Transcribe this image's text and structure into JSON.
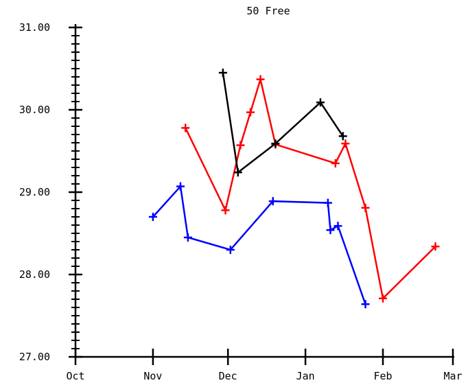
{
  "chart_data": {
    "type": "line",
    "title": "50 Free",
    "xlabel": "",
    "ylabel": "",
    "x_tick_labels": [
      "Oct",
      "Nov",
      "Dec",
      "Jan",
      "Feb",
      "Mar"
    ],
    "y_tick_labels": [
      "27.00",
      "28.00",
      "29.00",
      "30.00",
      "31.00"
    ],
    "xlim": [
      "Oct 1",
      "Mar 1"
    ],
    "ylim": [
      27.0,
      31.0
    ],
    "grid": false,
    "legend": "none",
    "marker": "plus",
    "series": [
      {
        "color": "#ff0000",
        "points": [
          {
            "x": "Nov 14",
            "y": 29.78
          },
          {
            "x": "Nov 30",
            "y": 28.78
          },
          {
            "x": "Dec 6",
            "y": 29.57
          },
          {
            "x": "Dec 10",
            "y": 29.97
          },
          {
            "x": "Dec 14",
            "y": 30.37
          },
          {
            "x": "Dec 20",
            "y": 29.58
          },
          {
            "x": "Jan 13",
            "y": 29.35
          },
          {
            "x": "Jan 17",
            "y": 29.59
          },
          {
            "x": "Jan 25",
            "y": 28.81
          },
          {
            "x": "Feb 1",
            "y": 27.71
          },
          {
            "x": "Feb 22",
            "y": 28.34
          }
        ]
      },
      {
        "color": "#000000",
        "points": [
          {
            "x": "Nov 29",
            "y": 30.45
          },
          {
            "x": "Dec 5",
            "y": 29.24
          },
          {
            "x": "Dec 20",
            "y": 29.59
          },
          {
            "x": "Jan 7",
            "y": 30.09
          },
          {
            "x": "Jan 16",
            "y": 29.68
          }
        ]
      },
      {
        "color": "#0000ff",
        "points": [
          {
            "x": "Nov 1",
            "y": 28.7
          },
          {
            "x": "Nov 12",
            "y": 29.07
          },
          {
            "x": "Nov 15",
            "y": 28.45
          },
          {
            "x": "Dec 2",
            "y": 28.3
          },
          {
            "x": "Dec 19",
            "y": 28.89
          },
          {
            "x": "Jan 10",
            "y": 28.87
          },
          {
            "x": "Jan 11",
            "y": 28.54
          },
          {
            "x": "Jan 14",
            "y": 28.59
          },
          {
            "x": "Jan 25",
            "y": 27.64
          }
        ]
      }
    ]
  }
}
